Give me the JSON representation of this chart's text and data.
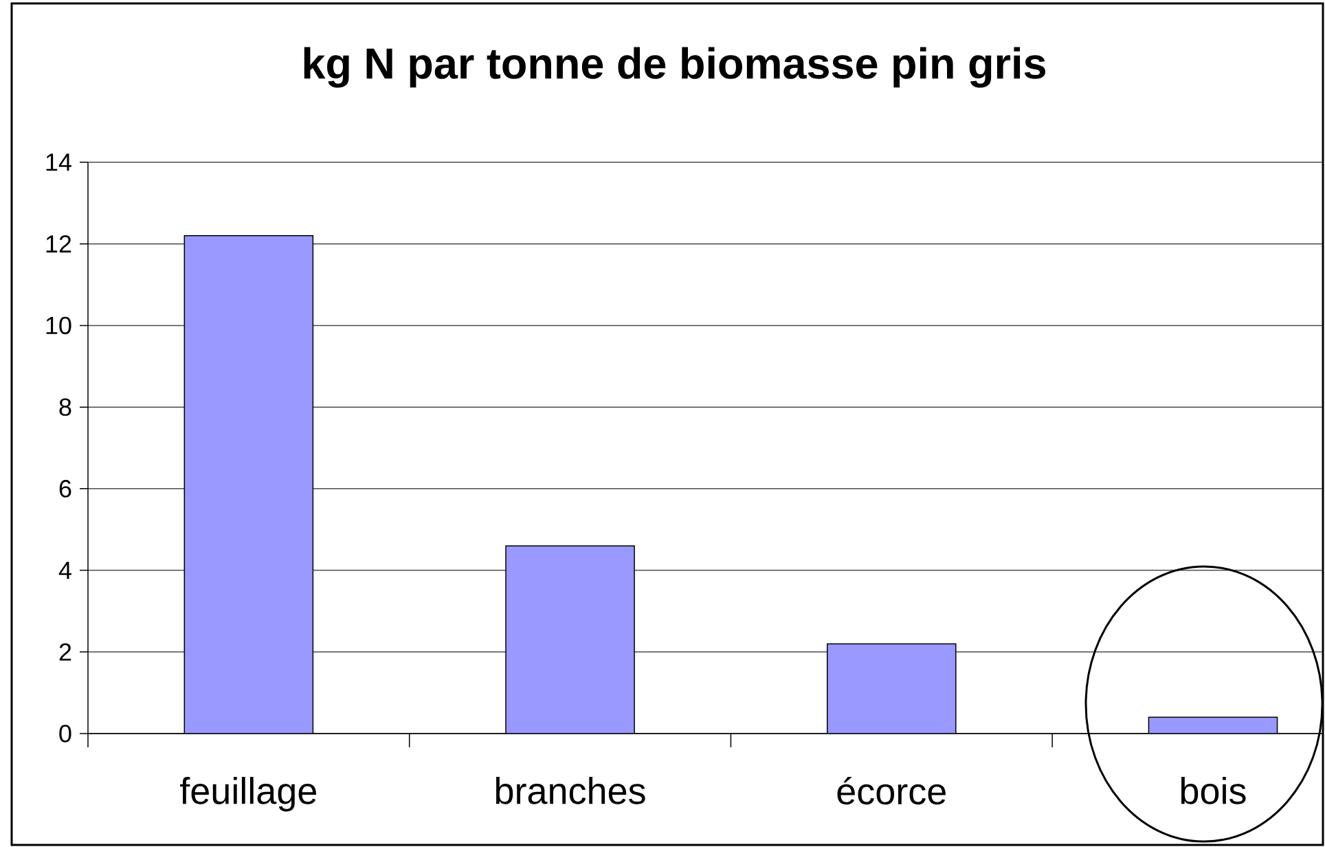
{
  "chart_data": {
    "type": "bar",
    "title": "kg N par tonne de biomasse pin gris",
    "categories": [
      "feuillage",
      "branches",
      "écorce",
      "bois"
    ],
    "values": [
      12.2,
      4.6,
      2.2,
      0.4
    ],
    "color": "#9999ff",
    "ylim": [
      0,
      14
    ],
    "yticks": [
      0,
      2,
      4,
      6,
      8,
      10,
      12,
      14
    ],
    "grid": "y"
  }
}
